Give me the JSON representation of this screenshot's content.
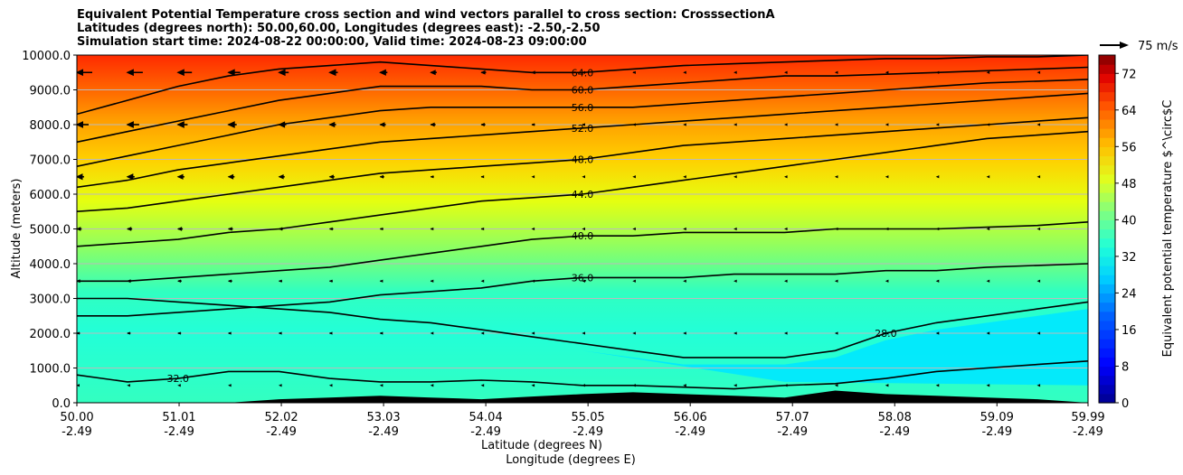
{
  "chart_data": {
    "type": "contourf",
    "title": [
      "Equivalent Potential Temperature cross section and wind vectors parallel to cross section: CrosssectionA",
      "Latitudes (degrees north): 50.00,60.00, Longitudes (degrees east): -2.50,-2.50",
      "Simulation start time: 2024-08-22 00:00:00, Valid time: 2024-08-23 09:00:00"
    ],
    "xlabel": [
      "Latitude (degrees N)",
      "Longitude (degrees E)"
    ],
    "ylabel": "Altitude (meters)",
    "x_ticks": [
      {
        "lat": "50.00",
        "lon": "-2.49"
      },
      {
        "lat": "51.01",
        "lon": "-2.49"
      },
      {
        "lat": "52.02",
        "lon": "-2.49"
      },
      {
        "lat": "53.03",
        "lon": "-2.49"
      },
      {
        "lat": "54.04",
        "lon": "-2.49"
      },
      {
        "lat": "55.05",
        "lon": "-2.49"
      },
      {
        "lat": "56.06",
        "lon": "-2.49"
      },
      {
        "lat": "57.07",
        "lon": "-2.49"
      },
      {
        "lat": "58.08",
        "lon": "-2.49"
      },
      {
        "lat": "59.09",
        "lon": "-2.49"
      },
      {
        "lat": "59.99",
        "lon": "-2.49"
      }
    ],
    "xlim": [
      50.0,
      59.99
    ],
    "ylim": [
      0,
      10000
    ],
    "y_ticks": [
      "0.0",
      "1000.0",
      "2000.0",
      "3000.0",
      "4000.0",
      "5000.0",
      "6000.0",
      "7000.0",
      "8000.0",
      "9000.0",
      "10000.0"
    ],
    "grid": "horizontal",
    "colorbar": {
      "label": "Equivalent potential temperature $^\\circ$C",
      "ticks": [
        "0",
        "8",
        "16",
        "24",
        "32",
        "40",
        "48",
        "56",
        "64",
        "72"
      ],
      "range": [
        0,
        76
      ]
    },
    "quiver_key": {
      "label": "75 m/s"
    },
    "contours": [
      {
        "level": "28.0",
        "heights": [
          3000,
          3000,
          2900,
          2800,
          2700,
          2600,
          2400,
          2300,
          2100,
          1900,
          1700,
          1500,
          1300,
          1300,
          1300,
          1500,
          2000,
          2300,
          2500,
          2700,
          2900
        ],
        "label_at": 0.8
      },
      {
        "level": "32.0",
        "heights": [
          800,
          600,
          700,
          900,
          900,
          700,
          600,
          600,
          650,
          600,
          500,
          500,
          450,
          400,
          500,
          550,
          700,
          900,
          1000,
          1100,
          1200
        ],
        "label_at": 0.12
      },
      {
        "level": "36.0",
        "heights": [
          2500,
          2500,
          2600,
          2700,
          2800,
          2900,
          3100,
          3200,
          3300,
          3500,
          3600,
          3600,
          3600,
          3700,
          3700,
          3700,
          3800,
          3800,
          3900,
          3950,
          4000
        ],
        "label_at": 0.5
      },
      {
        "level": "40.0",
        "heights": [
          3500,
          3500,
          3600,
          3700,
          3800,
          3900,
          4100,
          4300,
          4500,
          4700,
          4800,
          4800,
          4900,
          4900,
          4900,
          5000,
          5000,
          5000,
          5050,
          5100,
          5200
        ],
        "label_at": 0.5
      },
      {
        "level": "44.0",
        "heights": [
          4500,
          4600,
          4700,
          4900,
          5000,
          5200,
          5400,
          5600,
          5800,
          5900,
          6000,
          6200,
          6400,
          6600,
          6800,
          7000,
          7200,
          7400,
          7600,
          7700,
          7800
        ],
        "label_at": 0.5
      },
      {
        "level": "48.0",
        "heights": [
          5500,
          5600,
          5800,
          6000,
          6200,
          6400,
          6600,
          6700,
          6800,
          6900,
          7000,
          7200,
          7400,
          7500,
          7600,
          7700,
          7800,
          7900,
          8000,
          8100,
          8200
        ],
        "label_at": 0.5
      },
      {
        "level": "52.0",
        "heights": [
          6200,
          6400,
          6700,
          6900,
          7100,
          7300,
          7500,
          7600,
          7700,
          7800,
          7900,
          8000,
          8100,
          8200,
          8300,
          8400,
          8500,
          8600,
          8700,
          8800,
          8900
        ],
        "label_at": 0.5
      },
      {
        "level": "56.0",
        "heights": [
          6800,
          7100,
          7400,
          7700,
          8000,
          8200,
          8400,
          8500,
          8500,
          8500,
          8500,
          8500,
          8600,
          8700,
          8800,
          8900,
          9000,
          9100,
          9200,
          9250,
          9300
        ],
        "label_at": 0.5
      },
      {
        "level": "60.0",
        "heights": [
          7500,
          7800,
          8100,
          8400,
          8700,
          8900,
          9100,
          9100,
          9100,
          9000,
          9000,
          9100,
          9200,
          9300,
          9400,
          9400,
          9450,
          9500,
          9550,
          9600,
          9650
        ],
        "label_at": 0.5
      },
      {
        "level": "64.0",
        "heights": [
          8300,
          8700,
          9100,
          9400,
          9600,
          9700,
          9800,
          9700,
          9600,
          9500,
          9500,
          9600,
          9700,
          9750,
          9800,
          9850,
          9900,
          9900,
          9950,
          9950,
          10000
        ],
        "label_at": 0.5
      }
    ],
    "terrain_heights": [
      0,
      0,
      0,
      0,
      100,
      150,
      200,
      150,
      100,
      180,
      250,
      300,
      250,
      200,
      150,
      350,
      250,
      200,
      150,
      100,
      0
    ],
    "wind_u_rows": [
      {
        "alt": 9500,
        "u": [
          -30,
          -30,
          -28,
          -25,
          -22,
          -20,
          -18,
          -15,
          -12,
          -10,
          -8,
          -6,
          -5,
          -4,
          -3,
          -2,
          -2,
          -1,
          -1,
          -1,
          -1
        ]
      },
      {
        "alt": 8000,
        "u": [
          -25,
          -25,
          -22,
          -20,
          -18,
          -16,
          -14,
          -12,
          -10,
          -8,
          -6,
          -4,
          -3,
          -2,
          -2,
          -1,
          -1,
          -1,
          -1,
          -1,
          -1
        ]
      },
      {
        "alt": 6500,
        "u": [
          -18,
          -18,
          -16,
          -15,
          -14,
          -12,
          -10,
          -8,
          -7,
          -5,
          -4,
          -3,
          -2,
          -2,
          -1,
          -1,
          -1,
          -1,
          -1,
          -1,
          -1
        ]
      },
      {
        "alt": 5000,
        "u": [
          -12,
          -12,
          -12,
          -11,
          -10,
          -9,
          -8,
          -7,
          -6,
          -5,
          -4,
          -3,
          -2,
          -2,
          -1,
          -1,
          -1,
          -1,
          -1,
          -1,
          -1
        ]
      },
      {
        "alt": 3500,
        "u": [
          -10,
          -10,
          -9,
          -9,
          -8,
          -8,
          -7,
          -6,
          -5,
          -4,
          -3,
          -3,
          -2,
          -2,
          -1,
          -1,
          -1,
          -1,
          -1,
          -1,
          -1
        ]
      },
      {
        "alt": 2000,
        "u": [
          -8,
          -8,
          -8,
          -7,
          -7,
          -6,
          -6,
          -5,
          -4,
          -4,
          -3,
          -2,
          -2,
          -1,
          -1,
          -1,
          -1,
          -1,
          -1,
          -1,
          -1
        ]
      },
      {
        "alt": 500,
        "u": [
          -4,
          -4,
          -4,
          -4,
          -3,
          -3,
          -3,
          -3,
          -2,
          -2,
          -2,
          -2,
          -1,
          -1,
          -1,
          -1,
          -1,
          -1,
          -1,
          -1,
          -1
        ]
      }
    ]
  },
  "colors": {
    "terrain": "#000000",
    "contour": "#000000",
    "grid": "#bbbbbb"
  }
}
